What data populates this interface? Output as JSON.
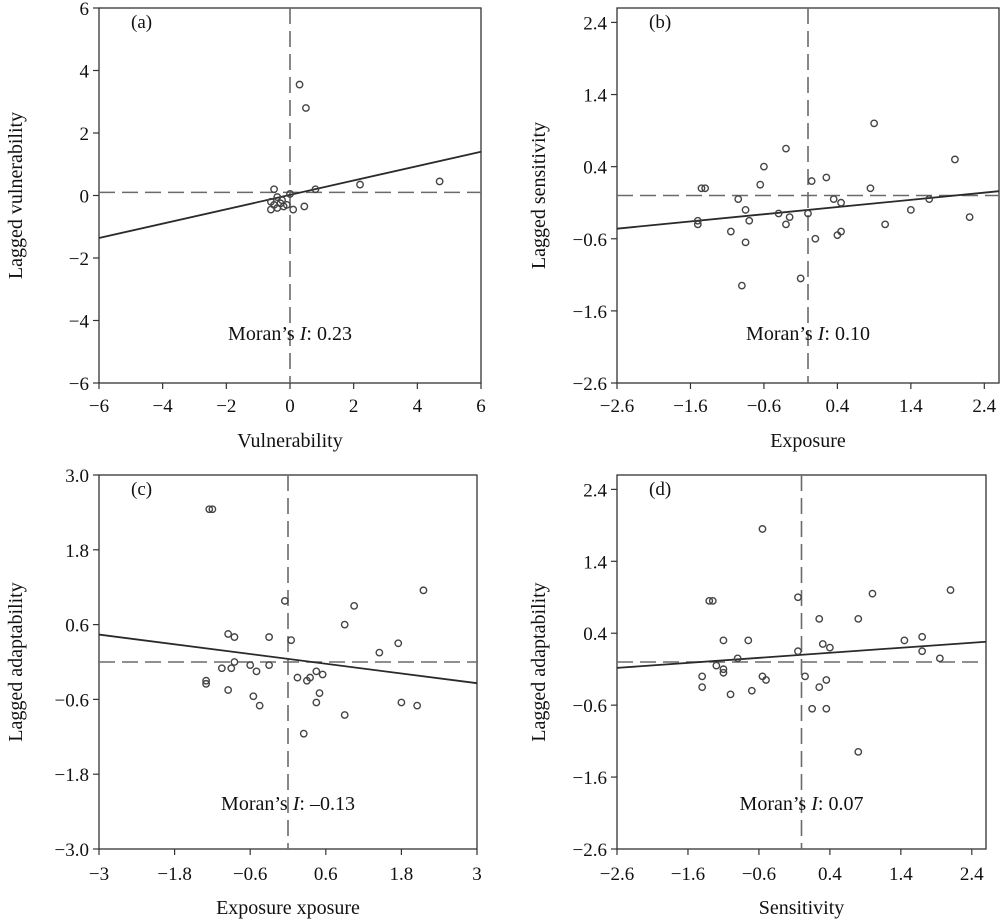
{
  "chart_data": [
    {
      "type": "scatter",
      "panel_label": "(a)",
      "xlabel": "Vulnerability",
      "ylabel": "Lagged vulnerability",
      "xlim": [
        -6,
        6
      ],
      "ylim": [
        -6,
        6
      ],
      "xticks": [
        -6,
        -4,
        -2,
        0,
        2,
        4,
        6
      ],
      "yticks": [
        -6,
        -4,
        -2,
        0,
        2,
        4,
        6
      ],
      "xtick_labels": [
        "−6",
        "−4",
        "−2",
        "0",
        "2",
        "4",
        "6"
      ],
      "ytick_labels": [
        "−6",
        "−4",
        "−2",
        "0",
        "2",
        "4",
        "6"
      ],
      "hline_y": 0.1,
      "vline_x": 0,
      "annotation": {
        "prefix": "Moran’s ",
        "italic": "I",
        "suffix": ": 0.23"
      },
      "fit": {
        "slope": 0.23,
        "intercept": 0.02
      },
      "points": [
        [
          0.3,
          3.55
        ],
        [
          0.5,
          2.8
        ],
        [
          4.7,
          0.45
        ],
        [
          2.2,
          0.35
        ],
        [
          0.8,
          0.2
        ],
        [
          0.0,
          0.05
        ],
        [
          -0.5,
          0.2
        ],
        [
          -0.4,
          -0.05
        ],
        [
          -0.6,
          -0.2
        ],
        [
          -0.3,
          -0.25
        ],
        [
          -0.5,
          -0.3
        ],
        [
          -0.2,
          -0.35
        ],
        [
          -0.4,
          -0.4
        ],
        [
          -0.1,
          -0.3
        ],
        [
          0.1,
          -0.45
        ],
        [
          -0.6,
          -0.45
        ],
        [
          0.45,
          -0.35
        ],
        [
          -0.25,
          -0.15
        ]
      ]
    },
    {
      "type": "scatter",
      "panel_label": "(b)",
      "xlabel": "Exposure",
      "ylabel": "Lagged sensitivity",
      "xlim": [
        -2.6,
        2.6
      ],
      "ylim": [
        -2.6,
        2.6
      ],
      "xticks": [
        -2.6,
        -1.6,
        -0.6,
        0.4,
        1.4,
        2.4
      ],
      "yticks": [
        -2.6,
        -1.6,
        -0.6,
        0.4,
        1.4,
        2.4
      ],
      "xtick_labels": [
        "−2.6",
        "−1.6",
        "−0.6",
        "0.4",
        "1.4",
        "2.4"
      ],
      "ytick_labels": [
        "−2.6",
        "−1.6",
        "−0.6",
        "0.4",
        "1.4",
        "2.4"
      ],
      "hline_y": 0.0,
      "vline_x": 0.0,
      "annotation": {
        "prefix": "Moran’s ",
        "italic": "I",
        "suffix": ": 0.10"
      },
      "fit": {
        "slope": 0.1,
        "intercept": -0.2
      },
      "points": [
        [
          0.9,
          1.0
        ],
        [
          -0.3,
          0.65
        ],
        [
          2.0,
          0.5
        ],
        [
          -0.6,
          0.4
        ],
        [
          -1.4,
          0.1
        ],
        [
          -1.45,
          0.1
        ],
        [
          -0.65,
          0.15
        ],
        [
          0.25,
          0.25
        ],
        [
          0.05,
          0.2
        ],
        [
          0.85,
          0.1
        ],
        [
          -0.95,
          -0.05
        ],
        [
          0.35,
          -0.05
        ],
        [
          0.45,
          -0.1
        ],
        [
          1.65,
          -0.05
        ],
        [
          -0.85,
          -0.2
        ],
        [
          -0.4,
          -0.25
        ],
        [
          0.0,
          -0.25
        ],
        [
          -0.25,
          -0.3
        ],
        [
          1.4,
          -0.2
        ],
        [
          -1.5,
          -0.35
        ],
        [
          -0.8,
          -0.35
        ],
        [
          2.2,
          -0.3
        ],
        [
          -1.5,
          -0.4
        ],
        [
          -0.3,
          -0.4
        ],
        [
          1.05,
          -0.4
        ],
        [
          -1.05,
          -0.5
        ],
        [
          0.45,
          -0.5
        ],
        [
          0.4,
          -0.55
        ],
        [
          0.1,
          -0.6
        ],
        [
          -0.85,
          -0.65
        ],
        [
          -0.1,
          -1.15
        ],
        [
          -0.9,
          -1.25
        ]
      ]
    },
    {
      "type": "scatter",
      "panel_label": "(c)",
      "xlabel": "Exposure xposure",
      "ylabel": "Lagged adaptability",
      "xlim": [
        -3.0,
        3.0
      ],
      "ylim": [
        -3.0,
        3.0
      ],
      "xticks": [
        -3.0,
        -1.8,
        -0.6,
        0.6,
        1.8,
        3.0
      ],
      "yticks": [
        -3.0,
        -1.8,
        -0.6,
        0.6,
        1.8,
        3.0
      ],
      "xtick_labels": [
        "−3",
        "−1.8",
        "−0.6",
        "0.6",
        "1.8",
        "3"
      ],
      "ytick_labels": [
        "−3.0",
        "−1.8",
        "−0.6",
        "0.6",
        "1.8",
        "3.0"
      ],
      "hline_y": 0.0,
      "vline_x": 0.0,
      "annotation": {
        "prefix": "Moran’s ",
        "italic": "I",
        "suffix": ": –0.13"
      },
      "fit": {
        "slope": -0.13,
        "intercept": 0.05
      },
      "points": [
        [
          -1.25,
          2.45
        ],
        [
          -1.2,
          2.45
        ],
        [
          2.15,
          1.15
        ],
        [
          -0.05,
          0.98
        ],
        [
          1.05,
          0.9
        ],
        [
          0.9,
          0.6
        ],
        [
          -0.95,
          0.45
        ],
        [
          -0.85,
          0.4
        ],
        [
          -0.3,
          0.4
        ],
        [
          0.05,
          0.35
        ],
        [
          1.75,
          0.3
        ],
        [
          1.45,
          0.15
        ],
        [
          -0.6,
          -0.05
        ],
        [
          -0.85,
          0.0
        ],
        [
          -0.9,
          -0.1
        ],
        [
          -0.5,
          -0.15
        ],
        [
          -0.3,
          -0.05
        ],
        [
          -1.05,
          -0.1
        ],
        [
          0.45,
          -0.15
        ],
        [
          0.55,
          -0.2
        ],
        [
          0.35,
          -0.25
        ],
        [
          -1.3,
          -0.3
        ],
        [
          -1.3,
          -0.35
        ],
        [
          0.15,
          -0.25
        ],
        [
          0.3,
          -0.3
        ],
        [
          -0.95,
          -0.45
        ],
        [
          0.5,
          -0.5
        ],
        [
          -0.55,
          -0.55
        ],
        [
          1.8,
          -0.65
        ],
        [
          -0.45,
          -0.7
        ],
        [
          0.45,
          -0.65
        ],
        [
          2.05,
          -0.7
        ],
        [
          0.9,
          -0.85
        ],
        [
          0.25,
          -1.15
        ]
      ]
    },
    {
      "type": "scatter",
      "panel_label": "(d)",
      "xlabel": "Sensitivity",
      "ylabel": "Lagged adaptability",
      "xlim": [
        -2.6,
        2.6
      ],
      "ylim": [
        -2.6,
        2.6
      ],
      "xticks": [
        -2.6,
        -1.6,
        -0.6,
        0.4,
        1.4,
        2.4
      ],
      "yticks": [
        -2.6,
        -1.6,
        -0.6,
        0.4,
        1.4,
        2.4
      ],
      "xtick_labels": [
        "−2.6",
        "−1.6",
        "−0.6",
        "0.4",
        "1.4",
        "2.4"
      ],
      "ytick_labels": [
        "−2.6",
        "−1.6",
        "−0.6",
        "0.4",
        "1.4",
        "2.4"
      ],
      "hline_y": 0.0,
      "vline_x": 0.0,
      "annotation": {
        "prefix": "Moran’s ",
        "italic": "I",
        "suffix": ": 0.07"
      },
      "fit": {
        "slope": 0.07,
        "intercept": 0.1
      },
      "points": [
        [
          -0.55,
          1.85
        ],
        [
          2.1,
          1.0
        ],
        [
          1.0,
          0.95
        ],
        [
          -0.05,
          0.9
        ],
        [
          -1.3,
          0.85
        ],
        [
          -1.25,
          0.85
        ],
        [
          0.8,
          0.6
        ],
        [
          0.25,
          0.6
        ],
        [
          -0.75,
          0.3
        ],
        [
          -1.1,
          0.3
        ],
        [
          1.45,
          0.3
        ],
        [
          1.7,
          0.35
        ],
        [
          0.3,
          0.25
        ],
        [
          0.4,
          0.2
        ],
        [
          -0.05,
          0.15
        ],
        [
          1.7,
          0.15
        ],
        [
          -0.9,
          0.05
        ],
        [
          1.95,
          0.05
        ],
        [
          -1.2,
          -0.05
        ],
        [
          -1.1,
          -0.1
        ],
        [
          -1.1,
          -0.15
        ],
        [
          -1.4,
          -0.2
        ],
        [
          0.05,
          -0.2
        ],
        [
          -0.55,
          -0.2
        ],
        [
          0.35,
          -0.25
        ],
        [
          -0.5,
          -0.25
        ],
        [
          0.25,
          -0.35
        ],
        [
          -1.4,
          -0.35
        ],
        [
          -0.7,
          -0.4
        ],
        [
          -1.0,
          -0.45
        ],
        [
          0.15,
          -0.65
        ],
        [
          0.35,
          -0.65
        ],
        [
          0.8,
          -1.25
        ]
      ]
    }
  ]
}
